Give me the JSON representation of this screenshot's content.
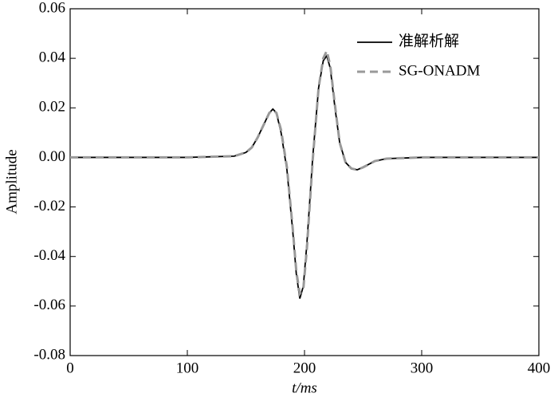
{
  "chart_data": {
    "type": "line",
    "x_label": "t/ms",
    "y_label": "Amplitude",
    "x": [
      0,
      50,
      100,
      140,
      150,
      155,
      160,
      165,
      170,
      173,
      176,
      180,
      185,
      190,
      193,
      196,
      199,
      202,
      207,
      212,
      216,
      219,
      222,
      226,
      230,
      235,
      240,
      245,
      250,
      260,
      270,
      300,
      350,
      400
    ],
    "series": [
      {
        "name": "准解析解",
        "color": "#000000",
        "dash": false,
        "values": [
          0,
          0,
          0,
          0.0005,
          0.002,
          0.004,
          0.008,
          0.013,
          0.018,
          0.0195,
          0.018,
          0.01,
          -0.005,
          -0.03,
          -0.047,
          -0.057,
          -0.052,
          -0.035,
          0.0,
          0.028,
          0.039,
          0.041,
          0.036,
          0.02,
          0.006,
          -0.002,
          -0.0045,
          -0.005,
          -0.004,
          -0.0015,
          -0.0005,
          0,
          0,
          0
        ]
      },
      {
        "name": "SG-ONADM",
        "color": "#999999",
        "dash": true,
        "values": [
          0,
          0,
          0,
          0.0005,
          0.002,
          0.004,
          0.008,
          0.013,
          0.018,
          0.019,
          0.018,
          0.011,
          -0.004,
          -0.029,
          -0.046,
          -0.055,
          -0.053,
          -0.037,
          -0.001,
          0.028,
          0.04,
          0.043,
          0.037,
          0.021,
          0.006,
          -0.002,
          -0.0045,
          -0.005,
          -0.004,
          -0.0015,
          -0.0005,
          0,
          0,
          0
        ]
      }
    ],
    "xlim": [
      0,
      400
    ],
    "xticks": [
      0,
      100,
      200,
      300,
      400
    ],
    "ylim": [
      -0.08,
      0.06
    ],
    "yticks": [
      0.06,
      0.04,
      0.02,
      {
        "value": 0,
        "label": "0.00"
      },
      -0.02,
      -0.04,
      -0.06,
      -0.08
    ],
    "legend": "upper-right"
  }
}
